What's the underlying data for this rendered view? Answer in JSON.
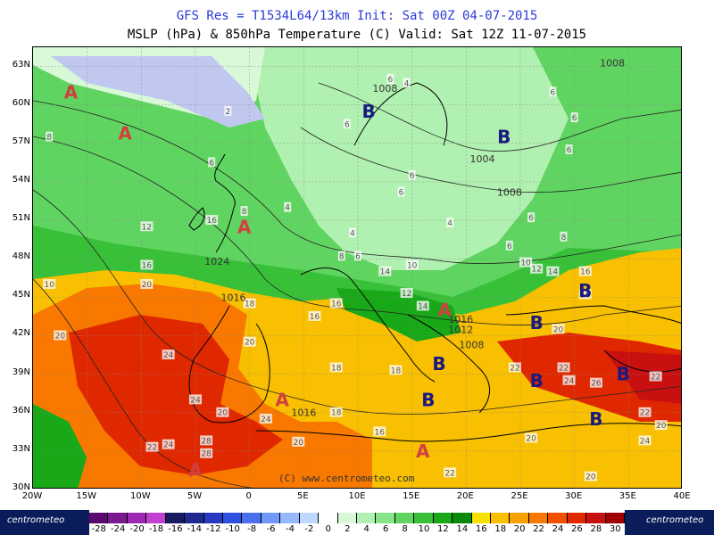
{
  "title_line1": "GFS Res = T1534L64/13km   Init: Sat 00Z 04-07-2015",
  "title_line2": "MSLP (hPa) & 850hPa Temperature (C)  Valid: Sat 12Z 11-07-2015",
  "watermark": "(C) www.centrometeo.com",
  "brand_left": "centrometeo",
  "brand_right": "centrometeo",
  "lat_labels": [
    "63N",
    "60N",
    "57N",
    "54N",
    "51N",
    "48N",
    "45N",
    "42N",
    "39N",
    "36N",
    "33N",
    "30N"
  ],
  "lon_labels": [
    "20W",
    "15W",
    "10W",
    "5W",
    "0",
    "5E",
    "10E",
    "15E",
    "20E",
    "25E",
    "30E",
    "35E",
    "40E"
  ],
  "colorbar": {
    "labels": [
      "-28",
      "-24",
      "-20",
      "-18",
      "-16",
      "-14",
      "-12",
      "-10",
      "-8",
      "-6",
      "-4",
      "-2",
      "0",
      "2",
      "4",
      "6",
      "8",
      "10",
      "12",
      "14",
      "16",
      "18",
      "20",
      "22",
      "24",
      "26",
      "28",
      "30"
    ],
    "colors": [
      "#5a0a6e",
      "#7a1890",
      "#9c28b0",
      "#c040d0",
      "#1a1a60",
      "#202890",
      "#2838c0",
      "#3050e0",
      "#4a70f0",
      "#7098f8",
      "#98b8fc",
      "#c0d8ff",
      "#ffffff",
      "#d8f8d8",
      "#b0f0b0",
      "#88e488",
      "#60d460",
      "#38c038",
      "#18a818",
      "#0a8a0a",
      "#f8e000",
      "#f8c000",
      "#f8a000",
      "#f87800",
      "#f05000",
      "#e02800",
      "#c81010",
      "#a00000"
    ]
  },
  "pressure_systems": [
    {
      "type": "A",
      "lon": -16.5,
      "lat": 61.0,
      "color": "#d04040"
    },
    {
      "type": "A",
      "lon": -11.5,
      "lat": 57.8,
      "color": "#d04040"
    },
    {
      "type": "A",
      "lon": -0.5,
      "lat": 50.5,
      "color": "#d04040"
    },
    {
      "type": "A",
      "lon": 18.0,
      "lat": 44.0,
      "color": "#d04040"
    },
    {
      "type": "A",
      "lon": 3.0,
      "lat": 37.0,
      "color": "#d04040"
    },
    {
      "type": "A",
      "lon": 16.0,
      "lat": 33.0,
      "color": "#d04040"
    },
    {
      "type": "A",
      "lon": -5.0,
      "lat": 31.5,
      "color": "#d04040"
    },
    {
      "type": "B",
      "lon": 11.0,
      "lat": 59.5,
      "color": "#1a1a80"
    },
    {
      "type": "B",
      "lon": 23.5,
      "lat": 57.5,
      "color": "#1a1a80"
    },
    {
      "type": "B",
      "lon": 31.0,
      "lat": 45.5,
      "color": "#1a1a80"
    },
    {
      "type": "B",
      "lon": 26.5,
      "lat": 43.0,
      "color": "#1a1a80"
    },
    {
      "type": "B",
      "lon": 17.5,
      "lat": 39.8,
      "color": "#1a1a80"
    },
    {
      "type": "B",
      "lon": 16.5,
      "lat": 37.0,
      "color": "#1a1a80"
    },
    {
      "type": "B",
      "lon": 26.5,
      "lat": 38.5,
      "color": "#1a1a80"
    },
    {
      "type": "B",
      "lon": 34.5,
      "lat": 39.0,
      "color": "#1a1a80"
    },
    {
      "type": "B",
      "lon": 32.0,
      "lat": 35.5,
      "color": "#1a1a80"
    }
  ],
  "isobar_labels": [
    {
      "text": "1008",
      "lon": 33.5,
      "lat": 63.3
    },
    {
      "text": "1008",
      "lon": 12.5,
      "lat": 61.3
    },
    {
      "text": "1004",
      "lon": 21.5,
      "lat": 55.8
    },
    {
      "text": "1008",
      "lon": 24.0,
      "lat": 53.2
    },
    {
      "text": "1024",
      "lon": -3.0,
      "lat": 47.8
    },
    {
      "text": "1016",
      "lon": -1.5,
      "lat": 45.0
    },
    {
      "text": "1016",
      "lon": 19.5,
      "lat": 43.3
    },
    {
      "text": "1016",
      "lon": 5.0,
      "lat": 36.0
    },
    {
      "text": "1012",
      "lon": 19.5,
      "lat": 42.5
    },
    {
      "text": "1008",
      "lon": 20.5,
      "lat": 41.3
    }
  ],
  "temp_labels": [
    {
      "text": "6",
      "lon": 13.0,
      "lat": 62.0
    },
    {
      "text": "4",
      "lon": 14.5,
      "lat": 61.7
    },
    {
      "text": "6",
      "lon": 28.0,
      "lat": 61.0
    },
    {
      "text": "6",
      "lon": 30.0,
      "lat": 59.0
    },
    {
      "text": "8",
      "lon": -18.5,
      "lat": 57.5
    },
    {
      "text": "2",
      "lon": -2.0,
      "lat": 59.5
    },
    {
      "text": "6",
      "lon": -3.5,
      "lat": 55.5
    },
    {
      "text": "6",
      "lon": 9.0,
      "lat": 58.5
    },
    {
      "text": "6",
      "lon": 15.0,
      "lat": 54.5
    },
    {
      "text": "6",
      "lon": 29.5,
      "lat": 56.5
    },
    {
      "text": "6",
      "lon": 14.0,
      "lat": 53.2
    },
    {
      "text": "8",
      "lon": -0.5,
      "lat": 51.7
    },
    {
      "text": "16",
      "lon": -3.5,
      "lat": 51.0
    },
    {
      "text": "4",
      "lon": 3.5,
      "lat": 52.0
    },
    {
      "text": "4",
      "lon": 18.5,
      "lat": 50.8
    },
    {
      "text": "6",
      "lon": 26.0,
      "lat": 51.2
    },
    {
      "text": "12",
      "lon": -9.5,
      "lat": 50.5
    },
    {
      "text": "4",
      "lon": 9.5,
      "lat": 50.0
    },
    {
      "text": "8",
      "lon": 29.0,
      "lat": 49.7
    },
    {
      "text": "6",
      "lon": 24.0,
      "lat": 49.0
    },
    {
      "text": "8",
      "lon": 8.5,
      "lat": 48.2
    },
    {
      "text": "6",
      "lon": 10.0,
      "lat": 48.2
    },
    {
      "text": "10",
      "lon": 15.0,
      "lat": 47.5
    },
    {
      "text": "14",
      "lon": 12.5,
      "lat": 47.0
    },
    {
      "text": "16",
      "lon": -9.5,
      "lat": 47.5
    },
    {
      "text": "10",
      "lon": 25.5,
      "lat": 47.7
    },
    {
      "text": "12",
      "lon": 26.5,
      "lat": 47.2
    },
    {
      "text": "14",
      "lon": 28.0,
      "lat": 47.0
    },
    {
      "text": "16",
      "lon": 31.0,
      "lat": 47.0
    },
    {
      "text": "10",
      "lon": -18.5,
      "lat": 46.0
    },
    {
      "text": "20",
      "lon": -9.5,
      "lat": 46.0
    },
    {
      "text": "12",
      "lon": 14.5,
      "lat": 45.3
    },
    {
      "text": "16",
      "lon": 8.0,
      "lat": 44.5
    },
    {
      "text": "18",
      "lon": 0.0,
      "lat": 44.5
    },
    {
      "text": "14",
      "lon": 16.0,
      "lat": 44.3
    },
    {
      "text": "18",
      "lon": 31.0,
      "lat": 45.2
    },
    {
      "text": "16",
      "lon": 6.0,
      "lat": 43.5
    },
    {
      "text": "20",
      "lon": -17.5,
      "lat": 42.0
    },
    {
      "text": "20",
      "lon": 0.0,
      "lat": 41.5
    },
    {
      "text": "18",
      "lon": 8.0,
      "lat": 39.5
    },
    {
      "text": "18",
      "lon": 13.5,
      "lat": 39.3
    },
    {
      "text": "20",
      "lon": 28.5,
      "lat": 42.5
    },
    {
      "text": "24",
      "lon": -7.5,
      "lat": 40.5
    },
    {
      "text": "22",
      "lon": 24.5,
      "lat": 39.5
    },
    {
      "text": "22",
      "lon": 29.0,
      "lat": 39.5
    },
    {
      "text": "24",
      "lon": -5.0,
      "lat": 37.0
    },
    {
      "text": "24",
      "lon": 29.5,
      "lat": 38.5
    },
    {
      "text": "26",
      "lon": 32.0,
      "lat": 38.3
    },
    {
      "text": "22",
      "lon": 37.5,
      "lat": 38.8
    },
    {
      "text": "20",
      "lon": -2.5,
      "lat": 36.0
    },
    {
      "text": "24",
      "lon": 1.5,
      "lat": 35.5
    },
    {
      "text": "18",
      "lon": 8.0,
      "lat": 36.0
    },
    {
      "text": "22",
      "lon": 36.5,
      "lat": 36.0
    },
    {
      "text": "20",
      "lon": 38.0,
      "lat": 35.0
    },
    {
      "text": "16",
      "lon": 12.0,
      "lat": 34.5
    },
    {
      "text": "24",
      "lon": -7.5,
      "lat": 33.5
    },
    {
      "text": "28",
      "lon": -4.0,
      "lat": 33.8
    },
    {
      "text": "22",
      "lon": -9.0,
      "lat": 33.3
    },
    {
      "text": "28",
      "lon": -4.0,
      "lat": 32.8
    },
    {
      "text": "20",
      "lon": 4.5,
      "lat": 33.7
    },
    {
      "text": "20",
      "lon": 26.0,
      "lat": 34.0
    },
    {
      "text": "24",
      "lon": 36.5,
      "lat": 33.8
    },
    {
      "text": "22",
      "lon": 18.5,
      "lat": 31.3
    },
    {
      "text": "20",
      "lon": 31.5,
      "lat": 31.0
    }
  ]
}
